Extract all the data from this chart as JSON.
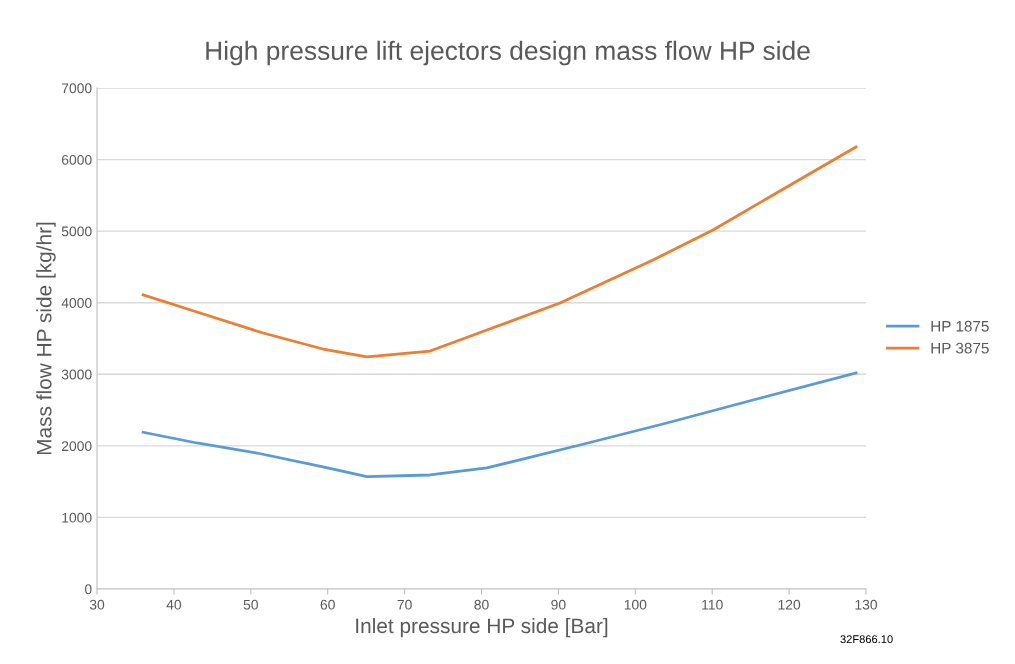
{
  "chart_data": {
    "type": "line",
    "title": "High pressure lift ejectors design mass flow HP side",
    "xlabel": "Inlet pressure HP side [Bar]",
    "ylabel": "Mass flow HP side [kg/hr]",
    "xlim": [
      30,
      130
    ],
    "xticks": [
      30,
      40,
      50,
      60,
      70,
      80,
      90,
      100,
      110,
      120,
      130
    ],
    "ylim": [
      0,
      7000
    ],
    "yticks": [
      0,
      1000,
      2000,
      3000,
      4000,
      5000,
      6000,
      7000
    ],
    "grid": "y",
    "legend": "right",
    "marker": "none",
    "line_style": "solid",
    "annotations": [
      "32F866.10"
    ],
    "series": [
      {
        "name": "HP 1875",
        "color": "#5b9bd5",
        "x": [
          36,
          43,
          50.8,
          59.4,
          65.1,
          73.3,
          80.7,
          92.8,
          104.1,
          115.3,
          128.7
        ],
        "values": [
          2190,
          2040,
          1900,
          1705,
          1570,
          1593,
          1691,
          2012,
          2319,
          2641,
          3018
        ]
      },
      {
        "name": "HP 3875",
        "color": "#ed7d31",
        "x": [
          36,
          43,
          51.6,
          59.4,
          65.1,
          73.3,
          80.7,
          90.2,
          102.3,
          110.1,
          119.7,
          128.7
        ],
        "values": [
          4110,
          3870,
          3577,
          3353,
          3242,
          3325,
          3619,
          3996,
          4597,
          5016,
          5617,
          6176
        ]
      }
    ]
  }
}
